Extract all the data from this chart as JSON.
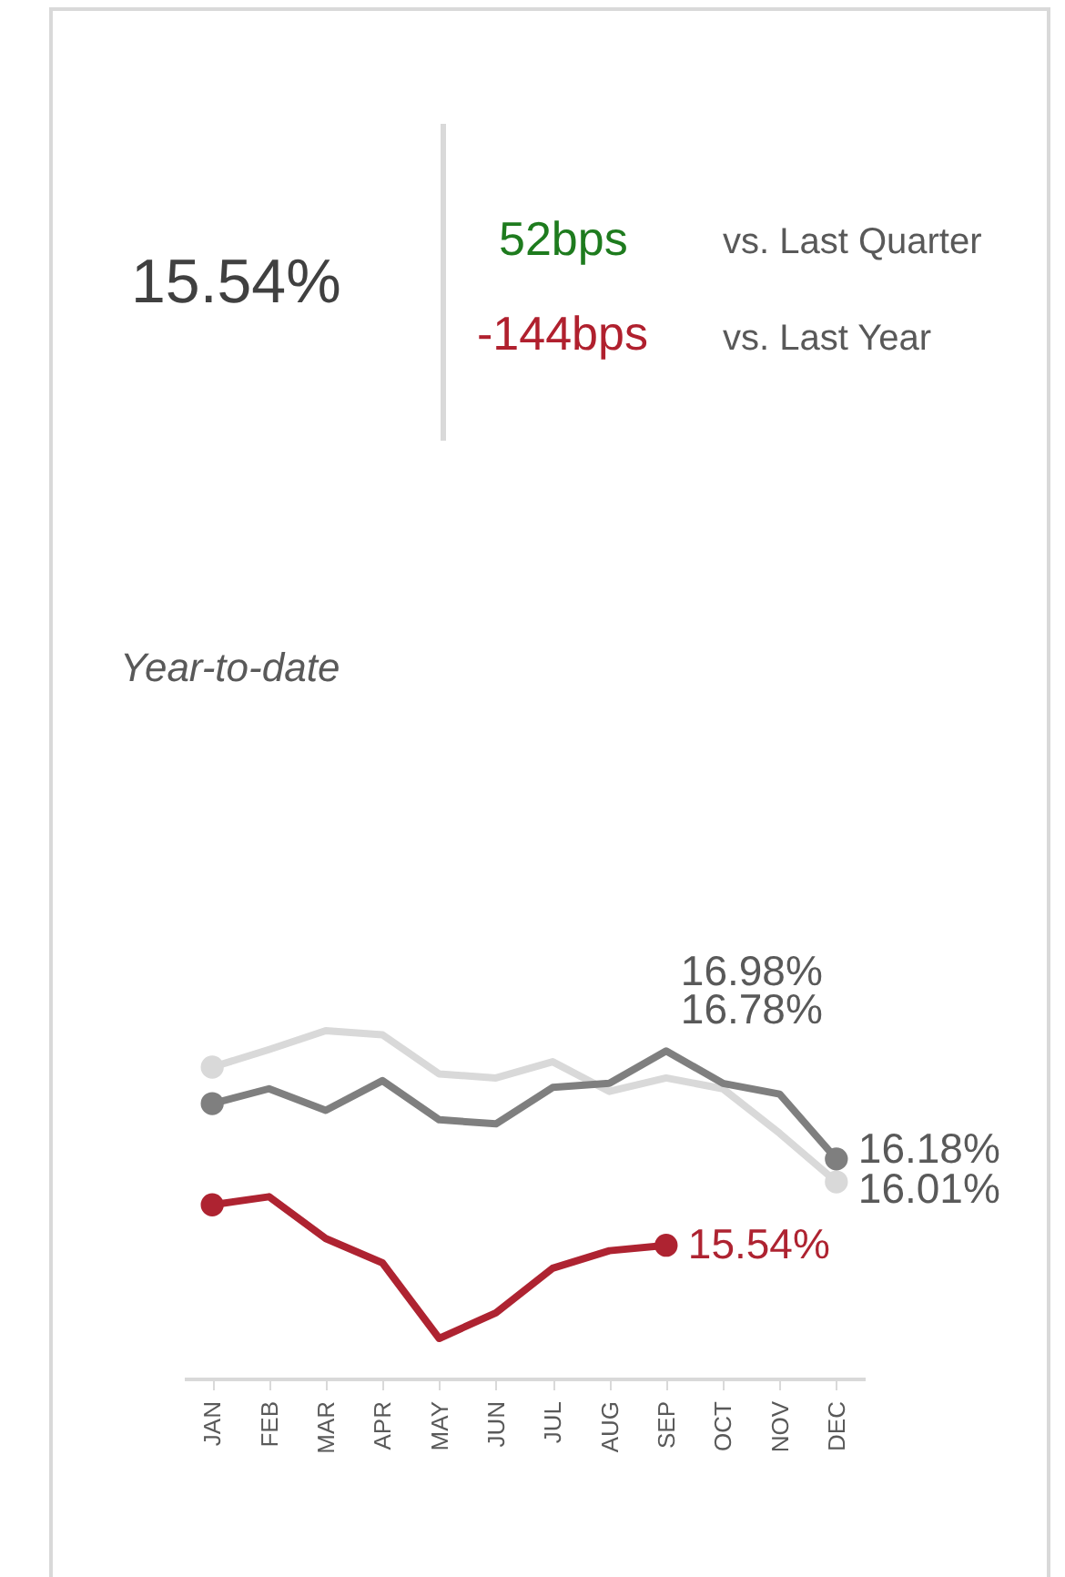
{
  "chart_data": {
    "type": "line",
    "title": "Year-to-date",
    "annotations": [
      "15.54%",
      "52bps",
      "vs. Last Quarter",
      "-144bps",
      "vs. Last Year"
    ],
    "categories": [
      "JAN",
      "FEB",
      "MAR",
      "APR",
      "MAY",
      "JUN",
      "JUL",
      "AUG",
      "SEP",
      "OCT",
      "NOV",
      "DEC"
    ],
    "series": [
      {
        "color": "#d9d9d9",
        "values": [
          16.86,
          16.99,
          17.13,
          17.1,
          16.81,
          16.78,
          16.9,
          16.68,
          16.78,
          16.7,
          16.37,
          16.01
        ],
        "value_labels": [
          null,
          null,
          null,
          null,
          null,
          null,
          null,
          null,
          "16.78%",
          null,
          null,
          "16.01%"
        ]
      },
      {
        "color": "#7f7f7f",
        "values": [
          16.59,
          16.7,
          16.54,
          16.76,
          16.47,
          16.44,
          16.71,
          16.74,
          16.98,
          16.74,
          16.66,
          16.18
        ],
        "value_labels": [
          null,
          null,
          null,
          null,
          null,
          null,
          null,
          null,
          "16.98%",
          null,
          null,
          "16.18%"
        ]
      },
      {
        "color": "#ae2331",
        "values": [
          15.84,
          15.9,
          15.59,
          15.41,
          14.85,
          15.04,
          15.37,
          15.5,
          15.54,
          null,
          null,
          null
        ],
        "value_labels": [
          null,
          null,
          null,
          null,
          null,
          null,
          null,
          null,
          "15.54%",
          null,
          null,
          null
        ]
      }
    ],
    "line_style": "solid",
    "grid": false,
    "tick_labels": "x"
  }
}
